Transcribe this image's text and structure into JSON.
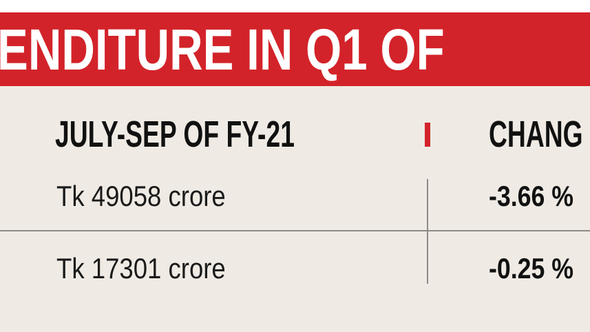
{
  "banner": {
    "title": "ENDITURE IN Q1 OF"
  },
  "table": {
    "header": [
      "JULY-SEP OF FY-21",
      "CHANG"
    ],
    "rows": [
      [
        "Tk 49058 crore",
        "-3.66 %"
      ],
      [
        "Tk 17301 crore",
        "-0.25 %"
      ]
    ]
  }
}
